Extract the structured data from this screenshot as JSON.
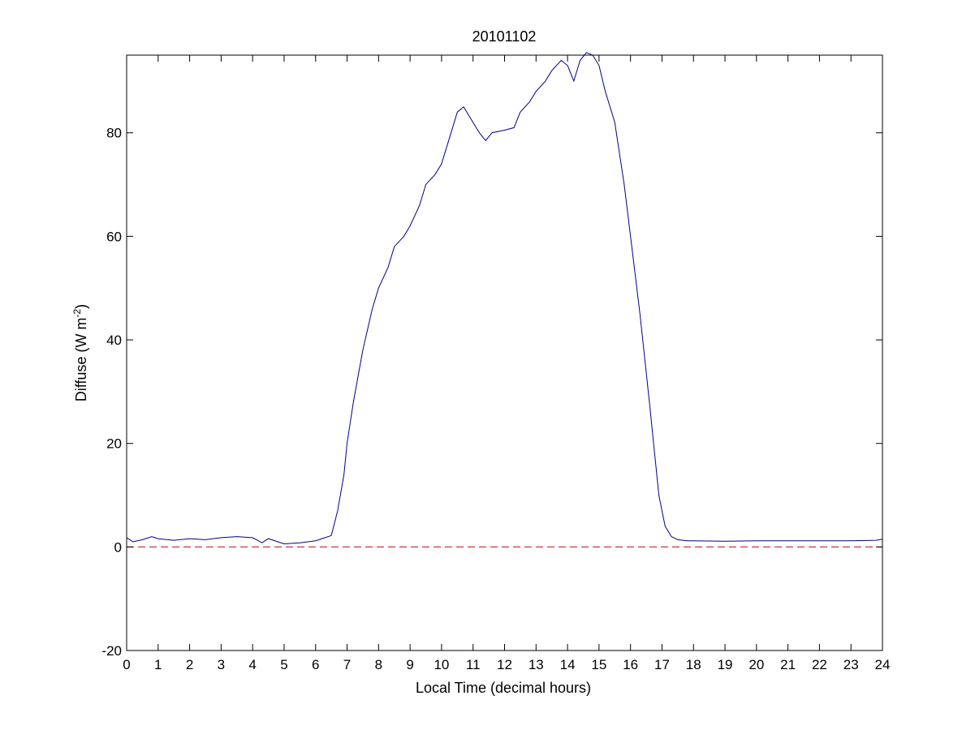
{
  "chart_data": {
    "type": "line",
    "title": "20101102",
    "xlabel": "Local Time (decimal hours)",
    "ylabel_main": "Diffuse (W m",
    "ylabel_sup": "-2",
    "ylabel_close": ")",
    "xlim": [
      0,
      24
    ],
    "ylim": [
      -20,
      95
    ],
    "xticks": [
      0,
      1,
      2,
      3,
      4,
      5,
      6,
      7,
      8,
      9,
      10,
      11,
      12,
      13,
      14,
      15,
      16,
      17,
      18,
      19,
      20,
      21,
      22,
      23,
      24
    ],
    "yticks": [
      -20,
      0,
      20,
      40,
      60,
      80
    ],
    "grid": false,
    "series": [
      {
        "color": "#00008b",
        "x": [
          0,
          0.2,
          0.5,
          0.8,
          1.0,
          1.5,
          2.0,
          2.5,
          3.0,
          3.5,
          4.0,
          4.3,
          4.5,
          5.0,
          5.5,
          6.0,
          6.3,
          6.5,
          6.7,
          6.9,
          7.0,
          7.2,
          7.5,
          7.8,
          8.0,
          8.3,
          8.5,
          8.8,
          9.0,
          9.3,
          9.5,
          9.8,
          10.0,
          10.3,
          10.5,
          10.7,
          10.8,
          11.0,
          11.2,
          11.4,
          11.6,
          12.0,
          12.3,
          12.5,
          12.8,
          13.0,
          13.3,
          13.5,
          13.8,
          14.0,
          14.2,
          14.4,
          14.6,
          14.8,
          15.0,
          15.2,
          15.5,
          15.8,
          16.0,
          16.3,
          16.6,
          16.9,
          17.1,
          17.3,
          17.5,
          17.8,
          18.0,
          19.0,
          20.0,
          21.0,
          22.0,
          23.0,
          23.8,
          24.0
        ],
        "y": [
          1.8,
          1.0,
          1.4,
          2.0,
          1.6,
          1.3,
          1.6,
          1.4,
          1.8,
          2.0,
          1.8,
          0.8,
          1.6,
          0.6,
          0.8,
          1.2,
          1.8,
          2.2,
          7.0,
          14.0,
          20.0,
          28.0,
          38.0,
          46.0,
          50.0,
          54.0,
          58.0,
          60.0,
          62.0,
          66.0,
          70.0,
          72.0,
          74.0,
          80.0,
          84.0,
          85.0,
          84.0,
          82.0,
          80.0,
          78.5,
          80.0,
          80.5,
          81.0,
          84.0,
          86.0,
          88.0,
          90.0,
          92.0,
          94.0,
          93.0,
          90.0,
          94.0,
          95.5,
          95.0,
          93.0,
          88.0,
          82.0,
          70.0,
          60.0,
          45.0,
          28.0,
          10.0,
          4.0,
          2.0,
          1.4,
          1.2,
          1.2,
          1.1,
          1.2,
          1.2,
          1.2,
          1.2,
          1.3,
          1.5
        ]
      },
      {
        "color": "#cc0000",
        "style": "dashed",
        "x": [
          0,
          24
        ],
        "y": [
          0,
          0
        ]
      }
    ]
  }
}
